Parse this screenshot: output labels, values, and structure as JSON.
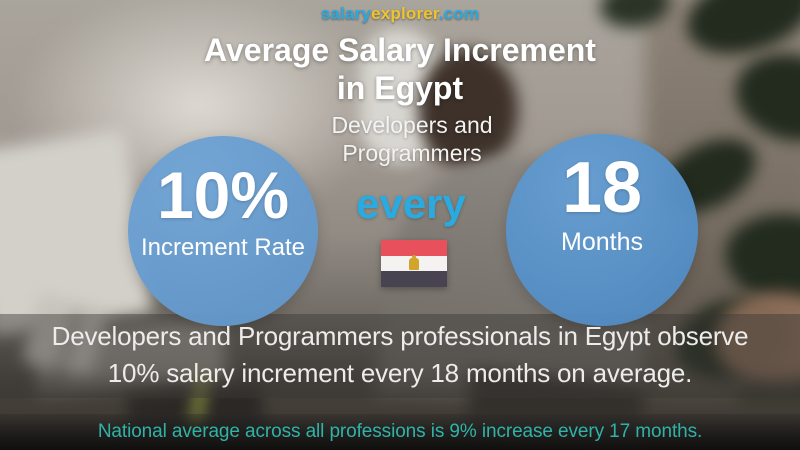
{
  "logo": {
    "part_salary": "salary",
    "part_explorer": "explorer",
    "part_domain": ".com"
  },
  "title": {
    "line1": "Average Salary Increment",
    "line2": "in Egypt"
  },
  "subtitle": {
    "line1": "Developers and",
    "line2": "Programmers"
  },
  "stats": {
    "increment": {
      "value": "10%",
      "label": "Increment Rate"
    },
    "connector": "every",
    "period": {
      "value": "18",
      "label": "Months"
    }
  },
  "flag": {
    "country": "Egypt"
  },
  "summary": {
    "line1": "Developers and Programmers professionals in Egypt observe",
    "line2": "10% salary increment every 18 months on average."
  },
  "footnote": {
    "text": "National average across all professions is 9% increase every 17 months."
  },
  "colors": {
    "logo_blue": "#29ABE2",
    "logo_yellow": "#EFC42C",
    "accent_blue": "#29ABE2",
    "circle_left_blue": "#6A9DCF",
    "circle_right_blue": "#5590C8",
    "footnote_teal": "#2FB3A7",
    "flag_red": "#E8515C",
    "flag_white": "#F5F3F1",
    "flag_black": "#474351",
    "flag_gold": "#D2A42B"
  }
}
